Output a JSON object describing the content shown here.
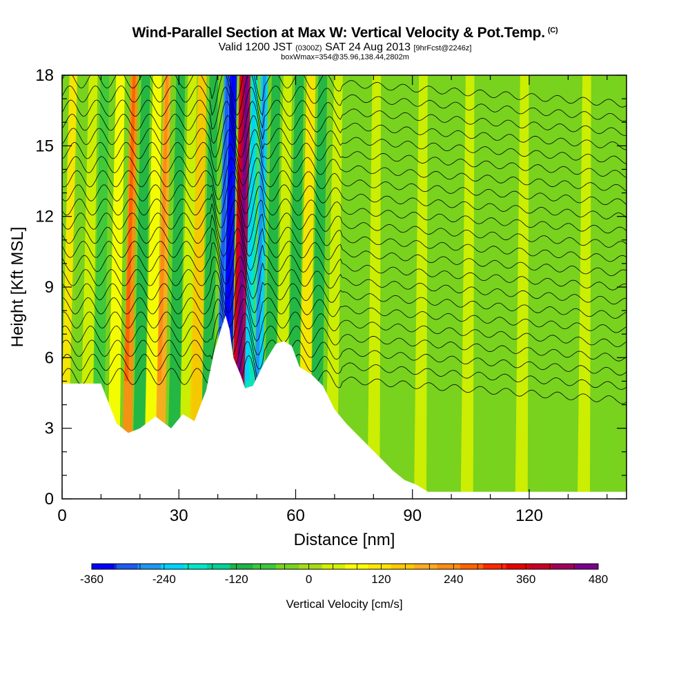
{
  "header": {
    "title": "Wind-Parallel Section at Max W: Vertical Velocity & Pot.Temp.",
    "title_mark": "(C)",
    "valid_prefix": "Valid 1200 JST",
    "valid_utc": "(0300Z)",
    "valid_date": "SAT 24 Aug 2013",
    "forecast": "[9hrFcst@2246z]",
    "box_info": "boxWmax=354@35.96,138.44,2802m"
  },
  "chart_data": {
    "type": "heatmap",
    "xlabel": "Distance [nm]",
    "ylabel": "Height [Kft MSL]",
    "xlim": [
      0,
      145
    ],
    "ylim": [
      0,
      18
    ],
    "x_ticks": [
      0,
      30,
      60,
      90,
      120
    ],
    "y_ticks": [
      0,
      3,
      6,
      9,
      12,
      15,
      18
    ],
    "colorbar": {
      "label": "Vertical Velocity [cm/s]",
      "min": -360,
      "max": 480,
      "step": 40,
      "tick_labels": [
        "-360",
        "-240",
        "-120",
        "0",
        "120",
        "240",
        "360",
        "480"
      ],
      "colors": [
        "#0000ff",
        "#1e5af0",
        "#1e96f0",
        "#00d2ff",
        "#00e6c8",
        "#00d296",
        "#1eb446",
        "#3cc83c",
        "#78d21e",
        "#a5dc14",
        "#d2f000",
        "#ffff00",
        "#ffe600",
        "#ffc800",
        "#ffaa1e",
        "#ff8c14",
        "#ff6400",
        "#ff2800",
        "#e60000",
        "#c80028",
        "#a0005a",
        "#78008c"
      ]
    },
    "terrain_kft": {
      "x": [
        0,
        10,
        14,
        17,
        20,
        24,
        28,
        31,
        34,
        37,
        39,
        41,
        42,
        43,
        44,
        46,
        47,
        49,
        52,
        55,
        57,
        59,
        61,
        64,
        67,
        70,
        73,
        76,
        79,
        82,
        85,
        88,
        91,
        92,
        94,
        100,
        110,
        120,
        130,
        145
      ],
      "height": [
        4.9,
        4.9,
        3.2,
        2.8,
        3.0,
        3.5,
        3.0,
        3.6,
        3.3,
        4.6,
        6.2,
        7.3,
        7.8,
        7.2,
        6.0,
        5.2,
        4.7,
        4.8,
        5.8,
        6.6,
        6.7,
        6.5,
        5.6,
        5.3,
        4.8,
        3.8,
        3.2,
        2.7,
        2.2,
        1.7,
        1.2,
        0.8,
        0.6,
        0.5,
        0.3,
        0.3,
        0.3,
        0.3,
        0.3,
        0.3
      ]
    },
    "vertical_velocity_bands": [
      {
        "x": 1,
        "w": 120
      },
      {
        "x": 3,
        "w": -40
      },
      {
        "x": 6,
        "w": 40
      },
      {
        "x": 9,
        "w": -80
      },
      {
        "x": 13,
        "w": 80
      },
      {
        "x": 16.5,
        "w": 240
      },
      {
        "x": 19.5,
        "w": -120
      },
      {
        "x": 22.5,
        "w": 80
      },
      {
        "x": 25,
        "w": 200
      },
      {
        "x": 28.5,
        "w": -120
      },
      {
        "x": 31.5,
        "w": 40
      },
      {
        "x": 34,
        "w": 160
      },
      {
        "x": 37,
        "w": -120
      },
      {
        "x": 40.5,
        "w": -280
      },
      {
        "x": 42,
        "w": -360
      },
      {
        "x": 44.5,
        "w": 360
      },
      {
        "x": 45.5,
        "w": 440
      },
      {
        "x": 47.5,
        "w": -200
      },
      {
        "x": 50,
        "w": -240
      },
      {
        "x": 53,
        "w": -120
      },
      {
        "x": 56,
        "w": 40
      },
      {
        "x": 59,
        "w": -120
      },
      {
        "x": 62,
        "w": 120
      },
      {
        "x": 65,
        "w": -120
      },
      {
        "x": 69,
        "w": 40
      },
      {
        "x": 74,
        "w": -40
      },
      {
        "x": 80,
        "w": 40
      },
      {
        "x": 85,
        "w": -40
      },
      {
        "x": 92,
        "w": 40
      },
      {
        "x": 98,
        "w": -40
      },
      {
        "x": 104,
        "w": 40
      },
      {
        "x": 111,
        "w": -40
      },
      {
        "x": 118,
        "w": 40
      },
      {
        "x": 126,
        "w": -40
      },
      {
        "x": 134,
        "w": 40
      },
      {
        "x": 140,
        "w": -40
      }
    ],
    "theta_contour_count": 22
  }
}
